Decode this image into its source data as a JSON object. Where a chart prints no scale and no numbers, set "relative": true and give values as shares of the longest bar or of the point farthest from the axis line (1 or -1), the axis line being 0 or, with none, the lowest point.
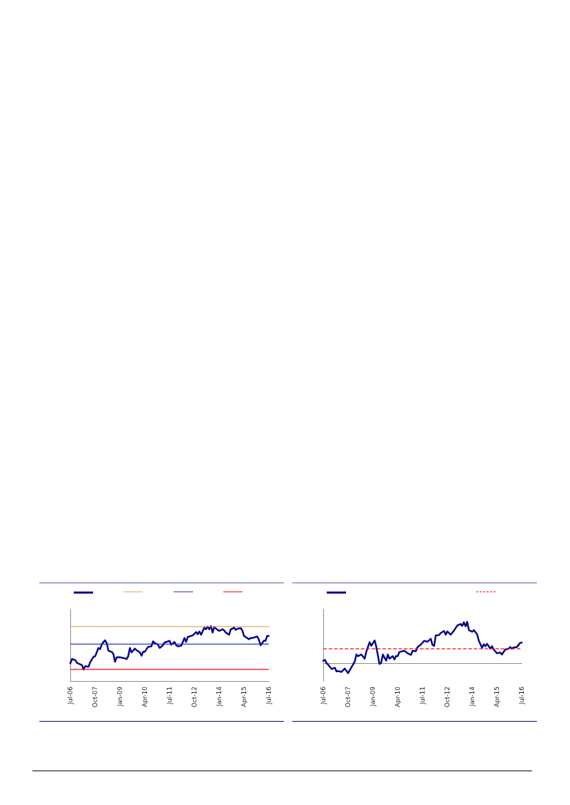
{
  "chart_data": [
    {
      "type": "line",
      "relative": true,
      "xlim": [
        "2006-07",
        "2016-07"
      ],
      "xticks": [
        {
          "value": "2006-07",
          "label": "Jul-06"
        },
        {
          "value": "2007-10",
          "label": "Oct-07"
        },
        {
          "value": "2009-01",
          "label": "Jan-09"
        },
        {
          "value": "2010-04",
          "label": "Apr-10"
        },
        {
          "value": "2011-07",
          "label": "Jul-11"
        },
        {
          "value": "2012-10",
          "label": "Oct-12"
        },
        {
          "value": "2014-01",
          "label": "Jan-14"
        },
        {
          "value": "2015-04",
          "label": "Apr-15"
        },
        {
          "value": "2016-07",
          "label": "Jul-16"
        }
      ],
      "series": [
        {
          "color": "#00008b",
          "x": [
            "2006-07",
            "2006-08",
            "2006-10",
            "2006-11",
            "2007-02",
            "2007-03",
            "2007-04",
            "2007-06",
            "2007-07",
            "2007-09",
            "2007-10",
            "2007-12",
            "2008-01",
            "2008-02",
            "2008-04",
            "2008-05",
            "2008-06",
            "2008-08",
            "2008-09",
            "2008-10",
            "2008-11",
            "2009-01",
            "2009-03",
            "2009-05",
            "2009-06",
            "2009-07",
            "2009-08",
            "2009-10",
            "2009-11",
            "2010-01",
            "2010-02",
            "2010-03",
            "2010-04",
            "2010-06",
            "2010-08",
            "2010-09",
            "2010-10",
            "2010-12",
            "2011-01",
            "2011-03",
            "2011-04",
            "2011-05",
            "2011-07",
            "2011-08",
            "2011-10",
            "2011-11",
            "2011-12",
            "2012-02",
            "2012-04",
            "2012-05",
            "2012-06",
            "2012-07",
            "2012-09",
            "2012-11",
            "2012-12",
            "2013-01",
            "2013-02",
            "2013-04",
            "2013-05",
            "2013-06",
            "2013-07",
            "2013-08",
            "2013-09",
            "2013-10",
            "2013-12",
            "2014-01",
            "2014-03",
            "2014-04",
            "2014-05",
            "2014-07",
            "2014-08",
            "2014-09",
            "2014-10",
            "2014-11",
            "2014-12",
            "2015-02",
            "2015-03",
            "2015-04",
            "2015-05",
            "2015-07",
            "2015-08",
            "2015-09",
            "2015-12",
            "2016-01",
            "2016-02",
            "2016-04",
            "2016-05",
            "2016-06",
            "2016-07"
          ],
          "values": [
            0.32,
            0.4,
            0.38,
            0.33,
            0.29,
            0.21,
            0.27,
            0.26,
            0.34,
            0.44,
            0.45,
            0.6,
            0.58,
            0.67,
            0.74,
            0.69,
            0.55,
            0.53,
            0.49,
            0.35,
            0.43,
            0.43,
            0.42,
            0.4,
            0.45,
            0.6,
            0.52,
            0.59,
            0.56,
            0.52,
            0.46,
            0.53,
            0.53,
            0.62,
            0.63,
            0.72,
            0.69,
            0.66,
            0.6,
            0.65,
            0.7,
            0.71,
            0.73,
            0.66,
            0.71,
            0.65,
            0.63,
            0.64,
            0.78,
            0.71,
            0.8,
            0.81,
            0.83,
            0.89,
            0.85,
            0.9,
            0.84,
            0.97,
            0.94,
            0.99,
            0.94,
            1,
            0.88,
            0.98,
            0.93,
            0.91,
            0.94,
            0.92,
            0.88,
            0.84,
            0.94,
            0.95,
            0.97,
            0.93,
            0.95,
            0.96,
            0.92,
            0.82,
            0.8,
            0.76,
            0.78,
            0.78,
            0.81,
            0.75,
            0.65,
            0.73,
            0.73,
            0.82,
            0.82
          ]
        }
      ],
      "ref_lines": [
        {
          "axis": "y",
          "value": 0.99,
          "color": "#e8a060"
        },
        {
          "axis": "y",
          "value": 0.67,
          "color": "#2233cc"
        },
        {
          "axis": "y",
          "value": 0.21,
          "color": "#ff0000"
        }
      ]
    },
    {
      "type": "line",
      "relative": true,
      "xlim": [
        "2006-07",
        "2016-07"
      ],
      "xticks": [
        {
          "value": "2006-07",
          "label": "Jul-06"
        },
        {
          "value": "2007-10",
          "label": "Oct-07"
        },
        {
          "value": "2009-01",
          "label": "Jan-09"
        },
        {
          "value": "2010-04",
          "label": "Apr-10"
        },
        {
          "value": "2011-07",
          "label": "Jul-11"
        },
        {
          "value": "2012-10",
          "label": "Oct-12"
        },
        {
          "value": "2014-01",
          "label": "Jan-14"
        },
        {
          "value": "2015-04",
          "label": "Apr-15"
        },
        {
          "value": "2016-07",
          "label": "Jul-16"
        }
      ],
      "series": [
        {
          "color": "#00008b",
          "x": [
            "2006-07",
            "2006-08",
            "2006-09",
            "2006-10",
            "2006-12",
            "2007-02",
            "2007-03",
            "2007-04",
            "2007-06",
            "2007-08",
            "2007-10",
            "2007-12",
            "2008-02",
            "2008-03",
            "2008-04",
            "2008-06",
            "2008-08",
            "2008-09",
            "2008-11",
            "2008-12",
            "2009-02",
            "2009-03",
            "2009-05",
            "2009-06",
            "2009-07",
            "2009-09",
            "2009-10",
            "2009-11",
            "2010-01",
            "2010-02",
            "2010-03",
            "2010-04",
            "2010-05",
            "2010-08",
            "2010-10",
            "2010-12",
            "2011-01",
            "2011-03",
            "2011-04",
            "2011-06",
            "2011-08",
            "2011-10",
            "2011-12",
            "2012-01",
            "2012-02",
            "2012-03",
            "2012-05",
            "2012-06",
            "2012-08",
            "2012-09",
            "2012-10",
            "2012-12",
            "2013-02",
            "2013-04",
            "2013-06",
            "2013-07",
            "2013-08",
            "2013-09",
            "2013-10",
            "2013-11",
            "2014-01",
            "2014-02",
            "2014-04",
            "2014-05",
            "2014-07",
            "2014-08",
            "2014-09",
            "2014-10",
            "2014-12",
            "2015-01",
            "2015-02",
            "2015-04",
            "2015-06",
            "2015-07",
            "2015-09",
            "2015-11",
            "2015-12",
            "2016-01",
            "2016-02",
            "2016-04",
            "2016-06",
            "2016-07"
          ],
          "values": [
            0.06,
            0.08,
            0,
            -0.04,
            -0.14,
            -0.11,
            -0.2,
            -0.19,
            -0.21,
            -0.13,
            -0.24,
            -0.1,
            0.04,
            0.21,
            0.17,
            0.21,
            0.11,
            0.28,
            0.51,
            0.42,
            0.55,
            0.41,
            -0.02,
            0.01,
            0.21,
            0.06,
            0.21,
            0.11,
            0.17,
            0.09,
            0.17,
            0.17,
            0.27,
            0.3,
            0.24,
            0.2,
            0.3,
            0.29,
            0.39,
            0.45,
            0.54,
            0.52,
            0.59,
            0.44,
            0.42,
            0.67,
            0.68,
            0.73,
            0.78,
            0.69,
            0.77,
            0.69,
            0.79,
            0.91,
            0.95,
            0.9,
            0.99,
            0.89,
            1,
            0.8,
            0.76,
            0.8,
            0.7,
            0.55,
            0.37,
            0.46,
            0.41,
            0.47,
            0.35,
            0.41,
            0.33,
            0.24,
            0.26,
            0.21,
            0.33,
            0.35,
            0.39,
            0.35,
            0.38,
            0.39,
            0.49,
            0.5
          ]
        }
      ],
      "ref_lines": [
        {
          "axis": "y",
          "value": 0.35,
          "color": "#ff0000",
          "line_style": "dashed"
        }
      ]
    }
  ]
}
